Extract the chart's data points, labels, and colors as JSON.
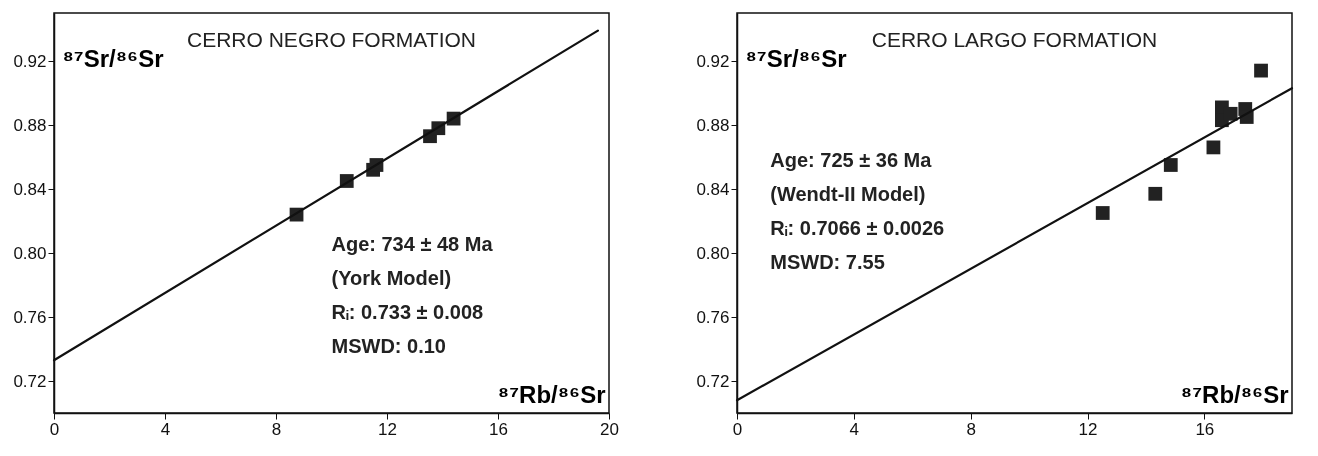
{
  "chart_data": [
    {
      "type": "scatter",
      "title": "CERRO NEGRO FORMATION",
      "xlabel": "⁸⁷Rb/⁸⁶Sr",
      "ylabel": "⁸⁷Sr/⁸⁶Sr",
      "annotations": [
        "Age: 734 ± 48 Ma",
        "(York Model)",
        "Rᵢ: 0.733 ± 0.008",
        "MSWD: 0.10"
      ],
      "series": [
        {
          "type": "scatter",
          "marker": "square",
          "color": "#222222",
          "x": [
            8.74,
            10.55,
            11.5,
            11.62,
            13.55,
            13.85,
            14.4
          ],
          "values": [
            0.824,
            0.845,
            0.852,
            0.855,
            0.873,
            0.878,
            0.884
          ]
        },
        {
          "type": "line",
          "color": "#111111",
          "x": [
            0,
            19.6
          ],
          "values": [
            0.733,
            0.939
          ]
        }
      ],
      "xlim": [
        0,
        20
      ],
      "ylim": [
        0.7,
        0.95
      ],
      "xticks": [
        0,
        4,
        8,
        12,
        16,
        20
      ],
      "yticks": [
        0.72,
        0.76,
        {
          "value": 0.8,
          "label": "0.80"
        },
        0.84,
        0.88,
        0.92
      ],
      "grid": false
    },
    {
      "type": "scatter",
      "title": "CERRO LARGO FORMATION",
      "xlabel": "⁸⁷Rb/⁸⁶Sr",
      "ylabel": "⁸⁷Sr/⁸⁶Sr",
      "annotations": [
        "Age: 725 ± 36 Ma",
        "(Wendt-II Model)",
        "Rᵢ: 0.7066 ± 0.0026",
        "MSWD: 7.55"
      ],
      "series": [
        {
          "type": "scatter",
          "marker": "square",
          "color": "#222222",
          "x": [
            12.52,
            14.32,
            14.85,
            16.31,
            16.6,
            16.6,
            16.9,
            17.4,
            17.45,
            17.94
          ],
          "values": [
            0.825,
            0.837,
            0.855,
            0.866,
            0.891,
            0.883,
            0.887,
            0.89,
            0.885,
            0.914
          ]
        },
        {
          "type": "line",
          "color": "#111111",
          "x": [
            0,
            19
          ],
          "values": [
            0.708,
            0.903
          ]
        }
      ],
      "xlim": [
        0,
        19
      ],
      "ylim": [
        0.7,
        0.95
      ],
      "xticks": [
        0,
        4,
        8,
        12,
        16
      ],
      "yticks": [
        0.72,
        0.76,
        {
          "value": 0.8,
          "label": "0.80"
        },
        0.84,
        0.88,
        0.92
      ],
      "grid": false
    }
  ]
}
